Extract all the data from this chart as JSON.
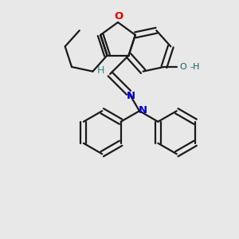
{
  "background_color": "#e8e8e8",
  "bond_color": "#1a1a1a",
  "bond_width": 1.6,
  "atom_colors": {
    "O_furan": "#dd0000",
    "O_hydroxyl": "#1a6060",
    "N": "#0000cc",
    "H": "#2a8a8a",
    "C": "#1a1a1a"
  },
  "figsize": [
    3.0,
    3.0
  ],
  "dpi": 100
}
